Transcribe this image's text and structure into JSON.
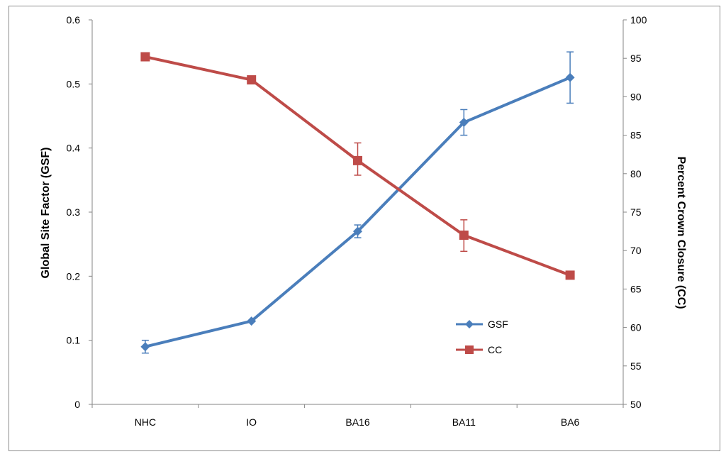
{
  "chart_data": {
    "type": "line",
    "categories": [
      "NHC",
      "IO",
      "BA16",
      "BA11",
      "BA6"
    ],
    "series": [
      {
        "name": "GSF",
        "axis": "left",
        "color": "#4a7ebb",
        "marker": "diamond",
        "values": [
          0.09,
          0.13,
          0.27,
          0.44,
          0.51
        ],
        "error_low": [
          0.08,
          null,
          0.26,
          0.42,
          0.47
        ],
        "error_high": [
          0.1,
          null,
          0.28,
          0.46,
          0.55
        ]
      },
      {
        "name": "CC",
        "axis": "right",
        "color": "#be4b48",
        "marker": "square",
        "values": [
          95.2,
          92.2,
          81.7,
          72.0,
          66.8
        ],
        "error_low": [
          null,
          null,
          79.8,
          69.9,
          null
        ],
        "error_high": [
          null,
          null,
          84.0,
          74.0,
          null
        ]
      }
    ],
    "ylabel": "Global Site Factor (GSF)",
    "y2label": "Percent Crown Closure (CC)",
    "xlabel": "",
    "ylim": [
      0,
      0.6
    ],
    "y2lim": [
      50,
      100
    ],
    "y_ticks": [
      "0",
      "0.1",
      "0.2",
      "0.3",
      "0.4",
      "0.5",
      "0.6"
    ],
    "y2_ticks": [
      "50",
      "55",
      "60",
      "65",
      "70",
      "75",
      "80",
      "85",
      "90",
      "95",
      "100"
    ],
    "grid": false,
    "legend_position": "right-inside"
  }
}
